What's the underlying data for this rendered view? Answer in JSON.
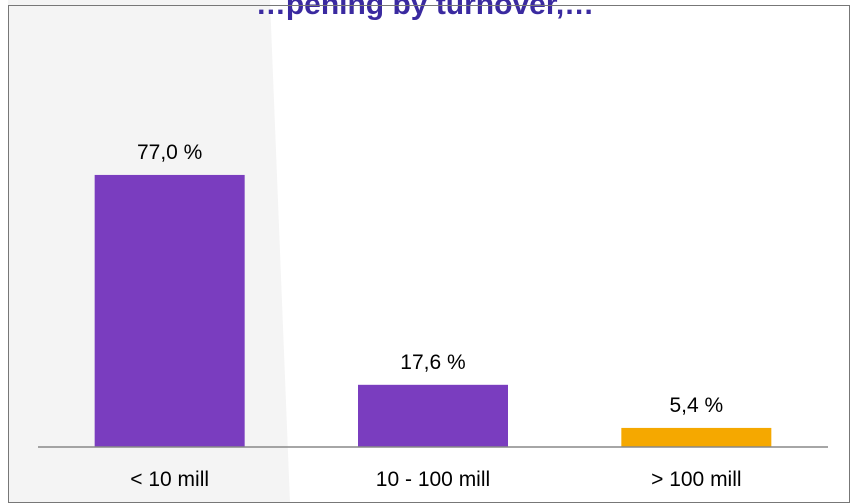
{
  "chart_data": {
    "type": "bar",
    "title": "…pening by turnover,…",
    "categories": [
      "< 10 mill",
      "10 - 100 mill",
      "> 100 mill"
    ],
    "values": [
      77.0,
      17.6,
      5.4
    ],
    "data_labels": [
      "77,0 %",
      "17,6 %",
      "5,4 %"
    ],
    "bar_colors": [
      "#7a3dbf",
      "#7a3dbf",
      "#f5a800"
    ],
    "ylim": [
      0,
      90
    ],
    "grid": false,
    "xlabel": "",
    "ylabel": ""
  },
  "colors": {
    "title": "#3a2aa0",
    "axis": "#888888",
    "frame": "#777777",
    "background_shade": "#f2f2f2"
  }
}
